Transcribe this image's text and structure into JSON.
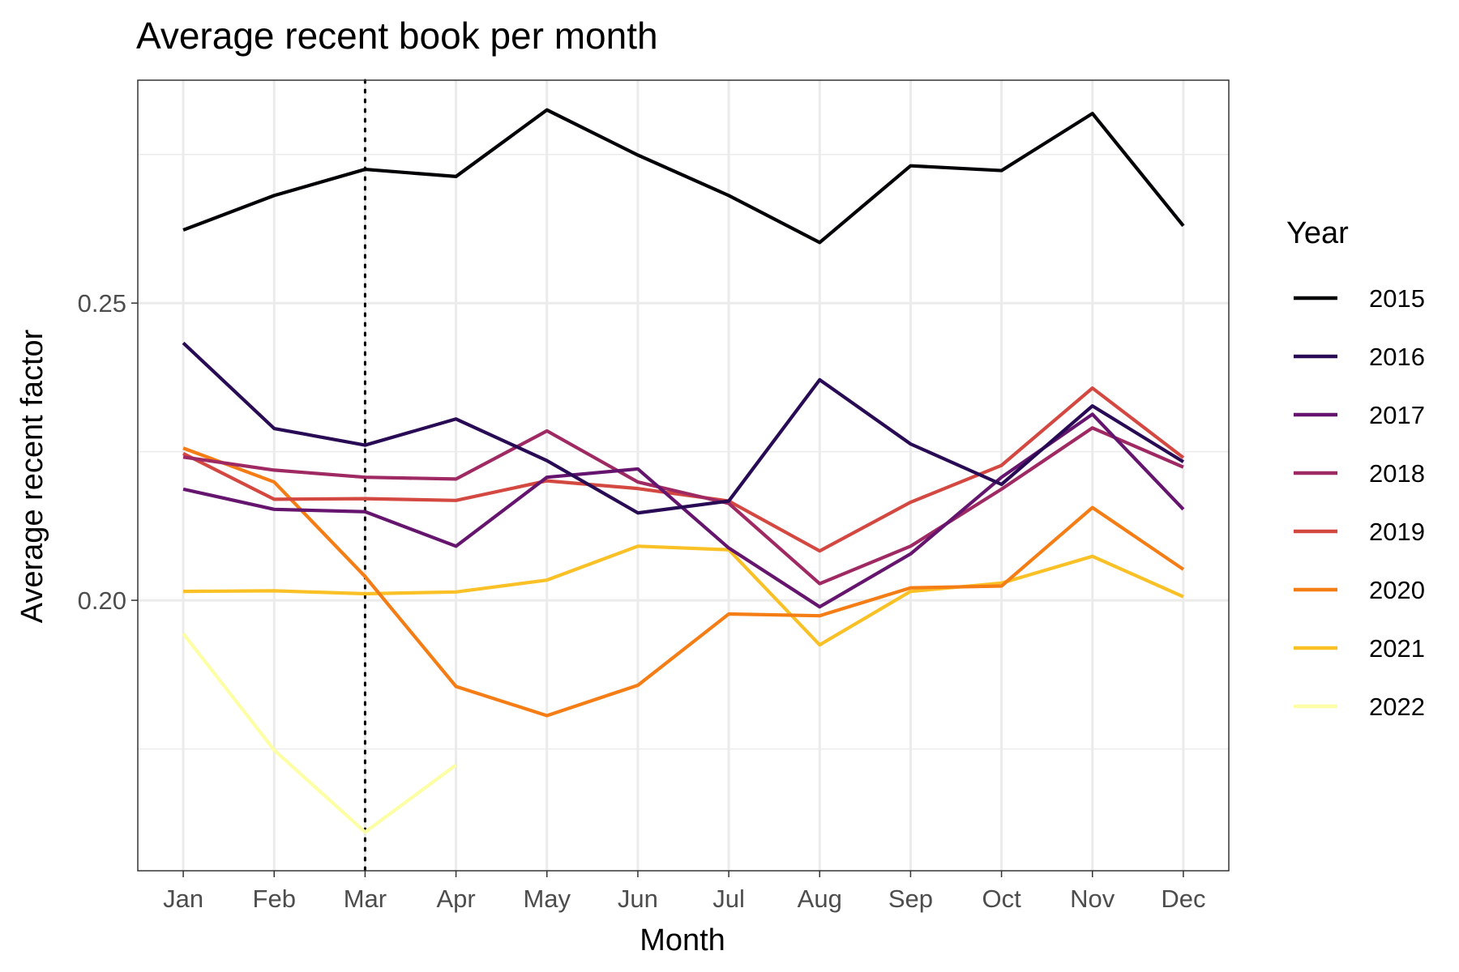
{
  "chart_data": {
    "type": "line",
    "title": "Average recent book per month",
    "xlabel": "Month",
    "ylabel": "Average recent factor",
    "categories": [
      "Jan",
      "Feb",
      "Mar",
      "Apr",
      "May",
      "Jun",
      "Jul",
      "Aug",
      "Sep",
      "Oct",
      "Nov",
      "Dec"
    ],
    "ylim": [
      0.1545,
      0.2875
    ],
    "yticks_major": [
      0.2,
      0.25
    ],
    "ytick_labels": [
      "0.20",
      "0.25"
    ],
    "yticks_minor": [
      0.175,
      0.225,
      0.275
    ],
    "grid": true,
    "reference_line": {
      "x": "Mar",
      "style": "dotted"
    },
    "legend": {
      "title": "Year",
      "placement": "right"
    },
    "series": [
      {
        "name": "2015",
        "color": "#000004",
        "values": [
          0.2623,
          0.2681,
          0.2725,
          0.2713,
          0.2825,
          0.2749,
          0.2681,
          0.2602,
          0.2731,
          0.2723,
          0.2819,
          0.263
        ]
      },
      {
        "name": "2016",
        "color": "#280B54",
        "values": [
          0.2433,
          0.2289,
          0.2261,
          0.2305,
          0.2235,
          0.2147,
          0.2167,
          0.2371,
          0.2263,
          0.2195,
          0.2327,
          0.2233
        ]
      },
      {
        "name": "2017",
        "color": "#65156E",
        "values": [
          0.2187,
          0.2153,
          0.2149,
          0.2091,
          0.2207,
          0.2221,
          0.2088,
          0.1989,
          0.2078,
          0.2207,
          0.2313,
          0.2153
        ]
      },
      {
        "name": "2018",
        "color": "#9F2A63",
        "values": [
          0.2241,
          0.2219,
          0.2207,
          0.2204,
          0.2285,
          0.2199,
          0.2163,
          0.2028,
          0.2091,
          0.2187,
          0.229,
          0.2224
        ]
      },
      {
        "name": "2019",
        "color": "#D44842",
        "values": [
          0.2247,
          0.217,
          0.2171,
          0.2168,
          0.2201,
          0.2188,
          0.2167,
          0.2083,
          0.2165,
          0.2227,
          0.2357,
          0.224
        ]
      },
      {
        "name": "2020",
        "color": "#F57D15",
        "values": [
          0.2256,
          0.2199,
          0.204,
          0.1855,
          0.1806,
          0.1857,
          0.1977,
          0.1974,
          0.2021,
          0.2024,
          0.2156,
          0.2052
        ]
      },
      {
        "name": "2021",
        "color": "#FAC127",
        "values": [
          0.2015,
          0.2016,
          0.2011,
          0.2014,
          0.2034,
          0.2091,
          0.2085,
          0.1925,
          0.2015,
          0.2029,
          0.2074,
          0.2006
        ]
      },
      {
        "name": "2022",
        "color": "#FCFFA4",
        "values": [
          0.1944,
          0.1748,
          0.161,
          0.1723,
          null,
          null,
          null,
          null,
          null,
          null,
          null,
          null
        ]
      }
    ]
  }
}
